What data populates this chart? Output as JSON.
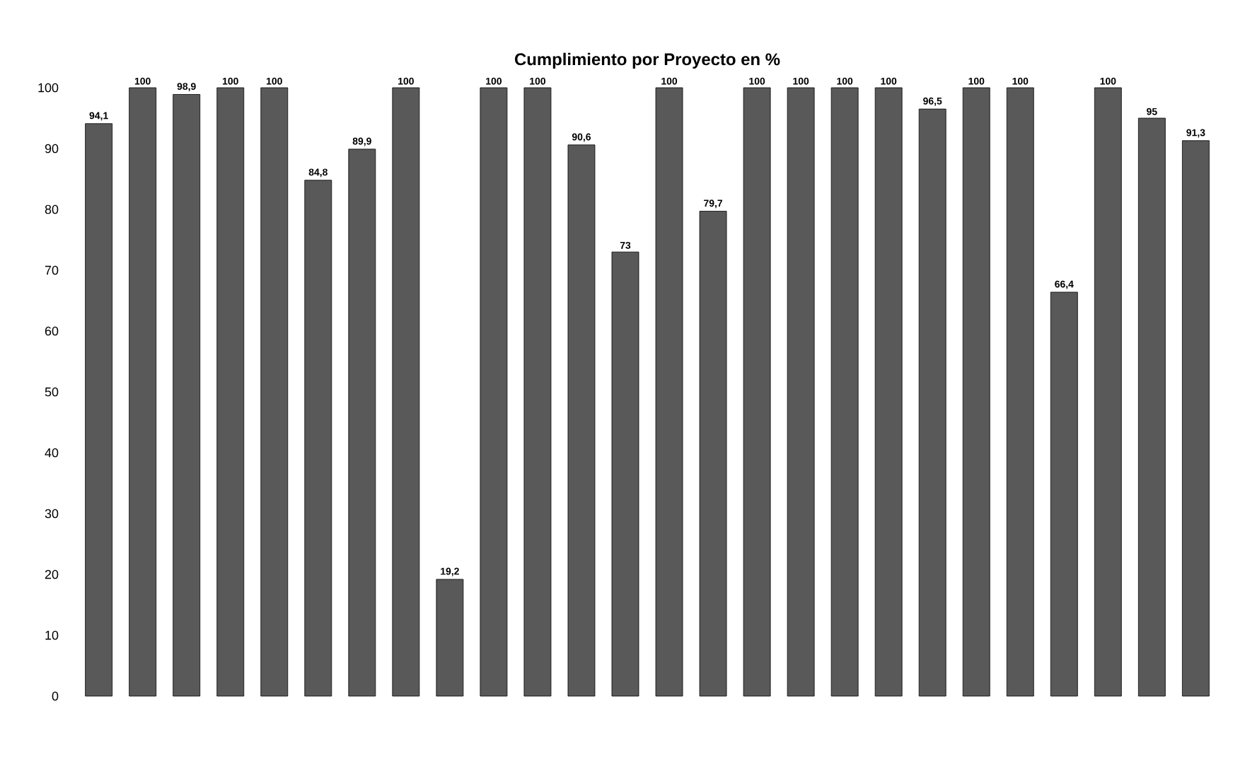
{
  "chart_data": {
    "type": "bar",
    "title": "Cumplimiento por Proyecto en %",
    "categories": [
      null,
      null,
      null,
      null,
      null,
      null,
      null,
      null,
      null,
      null,
      null,
      null,
      null,
      null,
      null,
      null,
      null,
      null,
      null,
      null,
      null,
      null,
      null,
      null,
      null,
      null
    ],
    "values": [
      94.1,
      100,
      98.9,
      100,
      100,
      84.8,
      89.9,
      100,
      19.2,
      100,
      100,
      90.6,
      73,
      100,
      79.7,
      100,
      100,
      100,
      100,
      96.5,
      100,
      100,
      66.4,
      100,
      95,
      91.3
    ],
    "value_labels": [
      "94,1",
      "100",
      "98,9",
      "100",
      "100",
      "84,8",
      "89,9",
      "100",
      "19,2",
      "100",
      "100",
      "90,6",
      "73",
      "100",
      "79,7",
      "100",
      "100",
      "100",
      "100",
      "96,5",
      "100",
      "100",
      "66,4",
      "100",
      "95",
      "91,3"
    ],
    "color": "#595959",
    "ylim": [
      0,
      100
    ],
    "yticks": [
      0,
      10,
      20,
      30,
      40,
      50,
      60,
      70,
      80,
      90,
      100
    ],
    "grid": false
  }
}
